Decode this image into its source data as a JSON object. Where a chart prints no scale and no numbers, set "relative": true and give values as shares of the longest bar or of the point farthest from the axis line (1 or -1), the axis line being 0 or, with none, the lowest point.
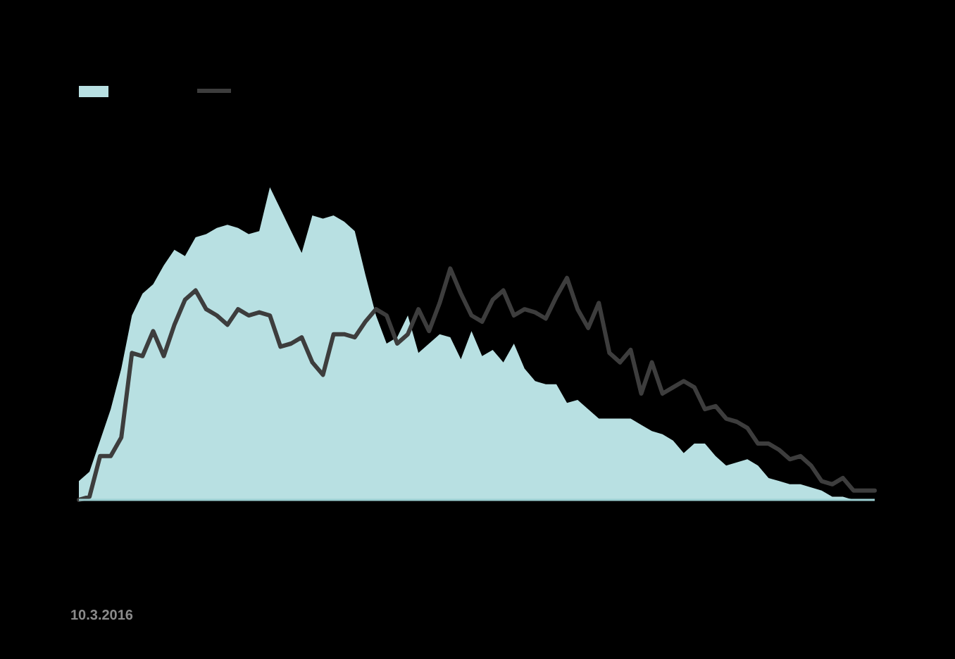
{
  "chart_data": {
    "type": "area",
    "relative": true,
    "annotations": [
      "10.3.2016"
    ],
    "categories": [
      null,
      null,
      null,
      null,
      null,
      null,
      null,
      null,
      null,
      null,
      null,
      null,
      null,
      null,
      null,
      null,
      null,
      null,
      null,
      null,
      null,
      null,
      null,
      null,
      null,
      null,
      null,
      null,
      null,
      null,
      null,
      null,
      null,
      null,
      null,
      null,
      null,
      null,
      null,
      null,
      null,
      null,
      null,
      null,
      null,
      null,
      null,
      null,
      null,
      null,
      null,
      null,
      null,
      null,
      null,
      null,
      null,
      null,
      null,
      null,
      null,
      null,
      null,
      null,
      null,
      null,
      null,
      null,
      null,
      null,
      null,
      null,
      null,
      null,
      null,
      null
    ],
    "series": [
      {
        "color": "#b8e0e2",
        "values": [
          0.06,
          0.09,
          0.19,
          0.29,
          0.42,
          0.59,
          0.66,
          0.69,
          0.75,
          0.8,
          0.78,
          0.84,
          0.85,
          0.87,
          0.88,
          0.87,
          0.85,
          0.86,
          1.0,
          0.93,
          0.86,
          0.79,
          0.91,
          0.9,
          0.91,
          0.89,
          0.86,
          0.72,
          0.59,
          0.5,
          0.52,
          0.59,
          0.47,
          0.5,
          0.53,
          0.52,
          0.45,
          0.54,
          0.46,
          0.48,
          0.44,
          0.5,
          0.42,
          0.38,
          0.37,
          0.37,
          0.31,
          0.32,
          0.29,
          0.26,
          0.26,
          0.26,
          0.26,
          0.24,
          0.22,
          0.21,
          0.19,
          0.15,
          0.18,
          0.18,
          0.14,
          0.11,
          0.12,
          0.13,
          0.11,
          0.07,
          0.06,
          0.05,
          0.05,
          0.04,
          0.03,
          0.01,
          0.01,
          0,
          0,
          0
        ]
      },
      {
        "type": "line",
        "color": "#3d3d3d",
        "values": [
          0,
          0.01,
          0.14,
          0.14,
          0.2,
          0.47,
          0.46,
          0.54,
          0.46,
          0.56,
          0.64,
          0.67,
          0.61,
          0.59,
          0.56,
          0.61,
          0.59,
          0.6,
          0.59,
          0.49,
          0.5,
          0.52,
          0.44,
          0.4,
          0.53,
          0.53,
          0.52,
          0.57,
          0.61,
          0.59,
          0.5,
          0.53,
          0.61,
          0.54,
          0.63,
          0.74,
          0.66,
          0.59,
          0.57,
          0.64,
          0.67,
          0.59,
          0.61,
          0.6,
          0.58,
          0.65,
          0.71,
          0.61,
          0.55,
          0.63,
          0.47,
          0.44,
          0.48,
          0.34,
          0.44,
          0.34,
          0.36,
          0.38,
          0.36,
          0.29,
          0.3,
          0.26,
          0.25,
          0.23,
          0.18,
          0.18,
          0.16,
          0.13,
          0.14,
          0.11,
          0.06,
          0.05,
          0.07,
          0.03,
          0.03,
          0.03
        ]
      }
    ]
  }
}
